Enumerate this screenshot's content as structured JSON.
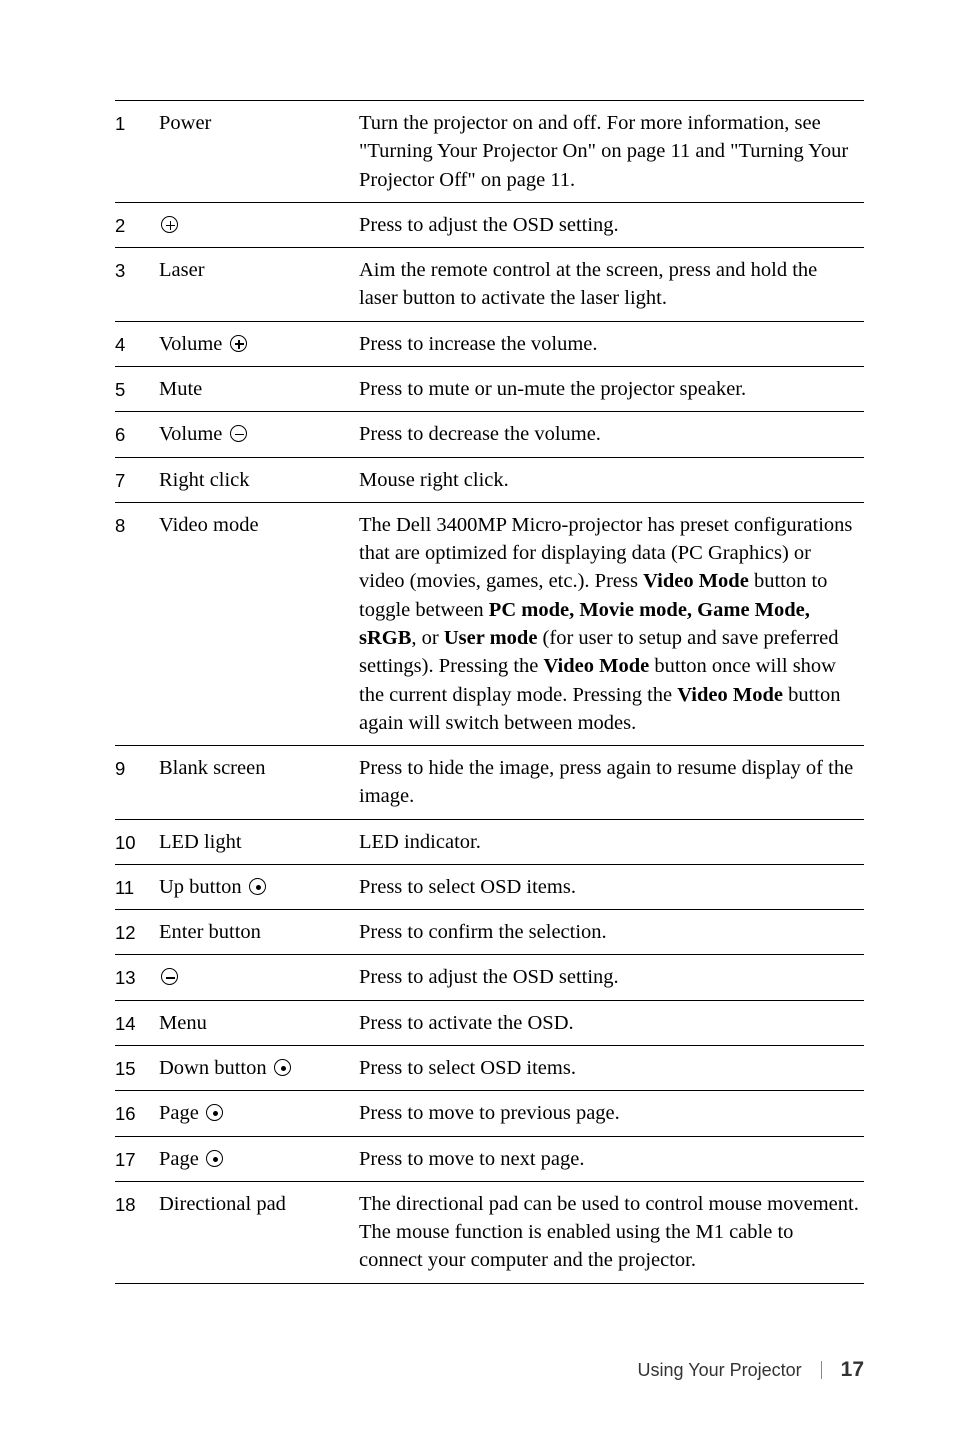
{
  "rows": [
    {
      "num": "1",
      "label": "Power",
      "desc": "Turn the projector on and off. For more information, see \"Turning Your Projector On\" on page 11 and \"Turning Your Projector Off\" on page 11."
    },
    {
      "num": "2",
      "label_icon": "plus",
      "desc": "Press to adjust the OSD setting."
    },
    {
      "num": "3",
      "label": "Laser",
      "desc": "Aim the remote control at the screen, press and hold the laser button to activate the laser light."
    },
    {
      "num": "4",
      "label": "Volume",
      "label_icon_after": "plus",
      "desc": "Press to increase the volume."
    },
    {
      "num": "5",
      "label": "Mute",
      "desc": "Press to mute or un-mute the projector speaker."
    },
    {
      "num": "6",
      "label": "Volume",
      "label_icon_after": "minus",
      "desc": "Press to decrease the volume."
    },
    {
      "num": "7",
      "label": "Right click",
      "desc": "Mouse right click."
    },
    {
      "num": "8",
      "label": "Video mode",
      "desc_html": "The Dell 3400MP Micro-projector has preset configurations that are optimized for displaying data (PC Graphics) or video (movies, games, etc.). Press <b>Video Mode</b> button to toggle between <b>PC mode, Movie mode, Game Mode, sRGB</b>, or <b>User mode</b> (for user to setup and save preferred settings). Pressing the <b>Video Mode</b> button once will show the current display mode. Pressing the <b>Video Mode</b> button again will switch between modes."
    },
    {
      "num": "9",
      "label": "Blank screen",
      "desc": "Press to hide the image, press again to resume display of the image."
    },
    {
      "num": "10",
      "label": "LED light",
      "desc": "LED indicator."
    },
    {
      "num": "11",
      "label": "Up button",
      "label_icon_after": "dot",
      "desc": "Press to select OSD items."
    },
    {
      "num": "12",
      "label": "Enter button",
      "desc": "Press to confirm the selection."
    },
    {
      "num": "13",
      "label_icon": "minus",
      "desc": "Press to adjust the OSD setting."
    },
    {
      "num": "14",
      "label": "Menu",
      "desc": "Press to activate the OSD."
    },
    {
      "num": "15",
      "label": "Down button",
      "label_icon_after": "dot",
      "desc": "Press to select OSD items."
    },
    {
      "num": "16",
      "label": "Page",
      "label_icon_after": "dot",
      "desc": "Press to move to previous page."
    },
    {
      "num": "17",
      "label": "Page",
      "label_icon_after": "dot",
      "desc": "Press to move to next page."
    },
    {
      "num": "18",
      "label": "Directional pad",
      "desc": "The directional pad can be used to control mouse movement. The mouse function is enabled using the M1 cable to connect your computer and the projector."
    }
  ],
  "footer_text": "Using Your Projector",
  "page_number": "17"
}
